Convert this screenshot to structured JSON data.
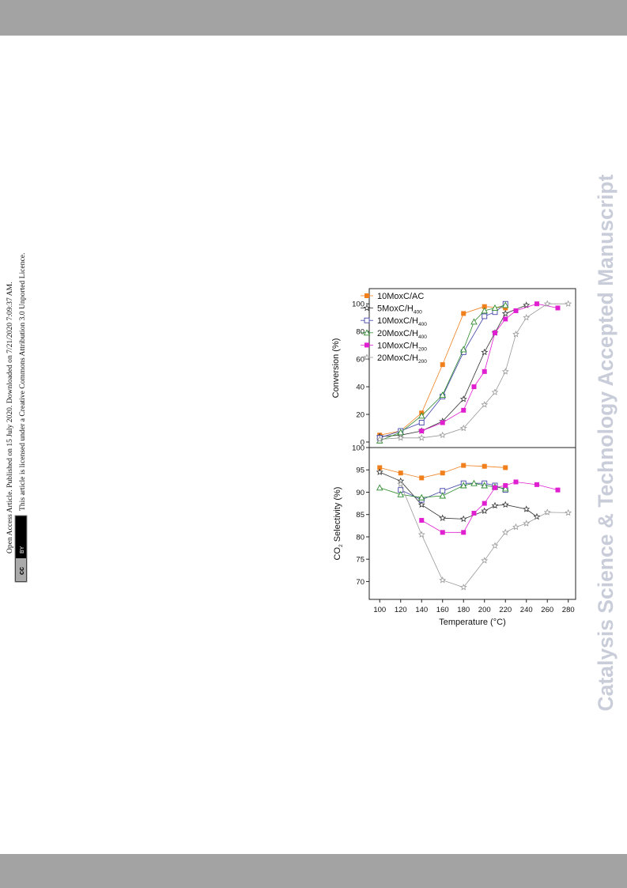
{
  "sidebar": {
    "access_note": "Open Access Article. Published on 15 July 2020. Downloaded on 7/21/2020 7:09:37 AM.",
    "license_note": "This article is licensed under a Creative Commons Attribution 3.0 Unported Licence.",
    "badge": {
      "cc": "cc",
      "by": "BY"
    }
  },
  "watermark": "Catalysis Science & Technology Accepted Manuscript",
  "chart_data": [
    {
      "type": "line",
      "y_label": "Conversion (%)",
      "xlim": [
        90,
        287
      ],
      "ylim": [
        -4,
        111
      ],
      "yticks": [
        0,
        20,
        40,
        60,
        80,
        100
      ],
      "legend": "upper left",
      "series": [
        {
          "name": "10MoxC/AC",
          "color": "#f07f1c",
          "marker": "square-filled",
          "x": [
            100,
            120,
            140,
            160,
            180,
            200,
            220
          ],
          "values": [
            5,
            8,
            21,
            56,
            93,
            98,
            97
          ]
        },
        {
          "name": "5MoxC/H400",
          "color": "#333333",
          "marker": "star",
          "x": [
            100,
            120,
            140,
            160,
            180,
            200,
            210,
            220,
            240
          ],
          "values": [
            4,
            5,
            8,
            15,
            31,
            65,
            79,
            93,
            99
          ]
        },
        {
          "name": "10MoxC/H400",
          "color": "#4444aa",
          "marker": "square-open",
          "x": [
            100,
            120,
            140,
            160,
            180,
            200,
            210,
            220
          ],
          "values": [
            3,
            8,
            14,
            33,
            65,
            91,
            94,
            100
          ]
        },
        {
          "name": "20MoxC/H400",
          "color": "#2e8b2e",
          "marker": "triangle-open",
          "x": [
            100,
            120,
            140,
            160,
            180,
            190,
            200,
            210,
            220
          ],
          "values": [
            1,
            7,
            19,
            34,
            67,
            87,
            95,
            97,
            99
          ]
        },
        {
          "name": "10MoxC/H200",
          "color": "#e020d0",
          "marker": "square-filled",
          "x": [
            140,
            160,
            180,
            190,
            200,
            210,
            220,
            230,
            250,
            270
          ],
          "values": [
            8,
            14,
            23,
            40,
            51,
            79,
            89,
            95,
            100,
            97
          ]
        },
        {
          "name": "20MoxC/H200",
          "color": "#999999",
          "marker": "star",
          "x": [
            100,
            120,
            140,
            160,
            180,
            200,
            210,
            220,
            230,
            240,
            260,
            280
          ],
          "values": [
            2,
            3,
            3,
            5,
            10,
            27,
            36,
            51,
            78,
            90,
            100,
            100
          ]
        }
      ]
    },
    {
      "type": "line",
      "y_label": "CO2 Selectivity  (%)",
      "x_label": "Temperature (°C)",
      "xlim": [
        90,
        287
      ],
      "ylim": [
        66,
        100
      ],
      "xticks": [
        100,
        120,
        140,
        160,
        180,
        200,
        220,
        240,
        260,
        280
      ],
      "yticks": [
        70,
        75,
        80,
        85,
        90,
        95,
        100
      ],
      "series": [
        {
          "color": "#f07f1c",
          "marker": "square-filled",
          "x": [
            100,
            120,
            140,
            160,
            180,
            200,
            220
          ],
          "values": [
            95.5,
            94.3,
            93.2,
            94.3,
            96,
            95.8,
            95.5
          ]
        },
        {
          "color": "#333333",
          "marker": "star",
          "x": [
            100,
            120,
            140,
            160,
            180,
            200,
            210,
            220,
            240,
            250
          ],
          "values": [
            94.5,
            92.5,
            87.2,
            84.2,
            84,
            85.8,
            87,
            87.2,
            86.2,
            84.5
          ]
        },
        {
          "color": "#4444aa",
          "marker": "square-open",
          "x": [
            120,
            140,
            160,
            180,
            200,
            210,
            220
          ],
          "values": [
            90.5,
            88.3,
            90.3,
            92,
            92,
            91.5,
            90.5
          ]
        },
        {
          "color": "#2e8b2e",
          "marker": "triangle-open",
          "x": [
            100,
            120,
            140,
            160,
            180,
            190,
            200,
            210,
            220
          ],
          "values": [
            91,
            89.5,
            88.8,
            89.2,
            91.5,
            92,
            91.5,
            91.2,
            90.8
          ]
        },
        {
          "color": "#e020d0",
          "marker": "square-filled",
          "x": [
            140,
            160,
            180,
            190,
            200,
            210,
            220,
            230,
            250,
            270
          ],
          "values": [
            83.7,
            81,
            81,
            85.3,
            87.5,
            91,
            91.5,
            92.3,
            91.7,
            90.5
          ]
        },
        {
          "color": "#999999",
          "marker": "star",
          "x": [
            120,
            140,
            160,
            180,
            200,
            210,
            220,
            230,
            240,
            260,
            280
          ],
          "values": [
            91.8,
            80.5,
            70.3,
            68.7,
            74.7,
            78,
            81,
            82.2,
            83,
            85.5,
            85.4
          ]
        }
      ]
    }
  ]
}
